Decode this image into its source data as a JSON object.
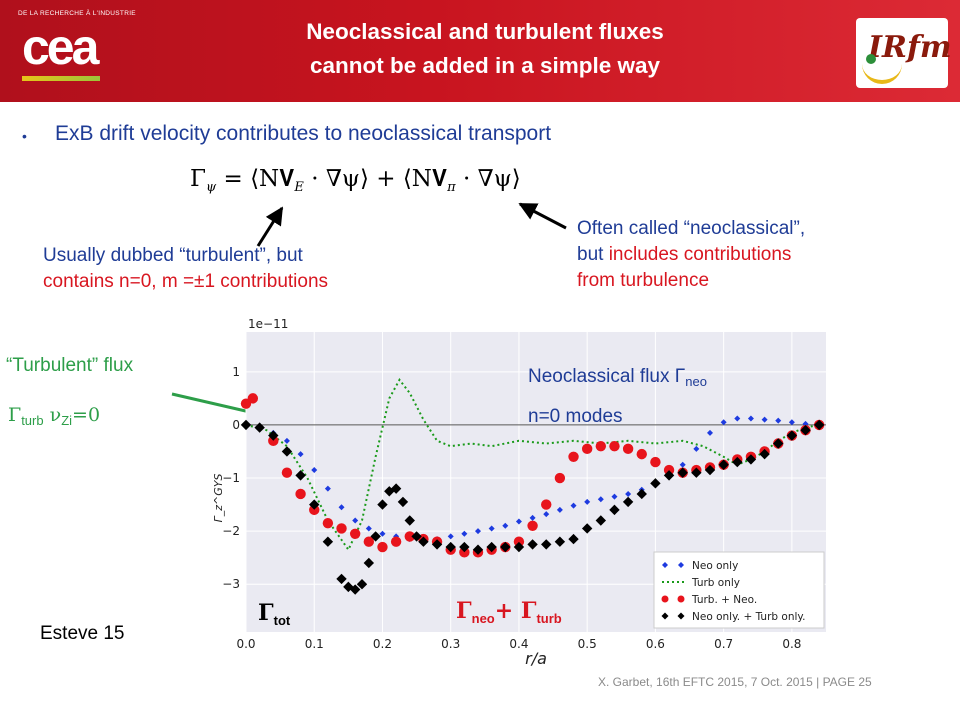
{
  "header": {
    "title_line1": "Neoclassical and turbulent fluxes",
    "title_line2": "cannot be added in a simple way",
    "logo_left_tagline": "DE LA RECHERCHE À L'INDUSTRIE",
    "logo_left_word": "cea",
    "logo_right_word": "IRfm"
  },
  "bullet": "ExB drift velocity contributes to neoclassical transport",
  "equation": {
    "lhs": "Γ",
    "lhs_sub": "ψ",
    "term1": " = ⟨N𝐕",
    "term1_sub": "E",
    "term1_rest": " · ∇ψ⟩ + ⟨N𝐕",
    "term2_sub": "π",
    "term2_rest": " · ∇ψ⟩"
  },
  "annotations": {
    "left_line1": "Usually dubbed “turbulent”, but",
    "left_line2": "contains n=0, m =±1 contributions",
    "right_line1": "Often called “neoclassical”,",
    "right_line2a": "but ",
    "right_line2b": "includes contributions",
    "right_line3": "from turbulence"
  },
  "labels": {
    "turb_flux": "“Turbulent” flux",
    "turb_sym": "Γ",
    "turb_sym_sub": "turb",
    "turb_nu": "ν",
    "turb_nu_sub": "Zi",
    "turb_nu_val": "=0",
    "neo_flux": "Neoclassical flux Γ",
    "neo_flux_sub": "neo",
    "n0_modes": "n=0 modes",
    "gtot": "Γ",
    "gtot_sub": "tot",
    "gsum_a": "Γ",
    "gsum_a_sub": "neo",
    "gsum_plus": "+ Γ",
    "gsum_b_sub": "turb"
  },
  "citation": "Esteve  15",
  "footer": "X. Garbet, 16th EFTC 2015, 7 Oct. 2015 | PAGE 25",
  "colors": {
    "header_red": "#c8141f",
    "navy": "#1f3c96",
    "red": "#d81620",
    "green": "#2d9e49",
    "neo_blue": "#1e3be0",
    "turb_green": "#1a9a1a"
  },
  "chart_data": {
    "type": "line",
    "xlabel": "r/a",
    "ylabel": "Γ_z^GYS",
    "offset_label": "1e−11",
    "xlim": [
      0.0,
      0.85
    ],
    "ylim": [
      -3.9,
      1.75
    ],
    "xticks": [
      "0.0",
      "0.1",
      "0.2",
      "0.3",
      "0.4",
      "0.5",
      "0.6",
      "0.7",
      "0.8"
    ],
    "yticks": [
      "−3",
      "−2",
      "−1",
      "0",
      "1"
    ],
    "grid": true,
    "legend_position": "lower-right",
    "legend": [
      "Neo only",
      "Turb only",
      "Turb. + Neo.",
      "Neo only. + Turb only."
    ],
    "series": [
      {
        "name": "Neo only",
        "style": "blue-small-diamond-markers",
        "x": [
          0.0,
          0.02,
          0.04,
          0.06,
          0.08,
          0.1,
          0.12,
          0.14,
          0.16,
          0.18,
          0.2,
          0.22,
          0.24,
          0.26,
          0.28,
          0.3,
          0.32,
          0.34,
          0.36,
          0.38,
          0.4,
          0.42,
          0.44,
          0.46,
          0.48,
          0.5,
          0.52,
          0.54,
          0.56,
          0.58,
          0.6,
          0.62,
          0.64,
          0.66,
          0.68,
          0.7,
          0.72,
          0.74,
          0.76,
          0.78,
          0.8,
          0.82,
          0.84
        ],
        "values": [
          0.0,
          -0.05,
          -0.15,
          -0.3,
          -0.55,
          -0.85,
          -1.2,
          -1.55,
          -1.8,
          -1.95,
          -2.05,
          -2.1,
          -2.15,
          -2.15,
          -2.15,
          -2.1,
          -2.05,
          -2.0,
          -1.95,
          -1.9,
          -1.82,
          -1.75,
          -1.68,
          -1.6,
          -1.52,
          -1.45,
          -1.4,
          -1.35,
          -1.3,
          -1.22,
          -1.1,
          -0.95,
          -0.75,
          -0.45,
          -0.15,
          0.05,
          0.12,
          0.12,
          0.1,
          0.08,
          0.05,
          0.02,
          0.0
        ]
      },
      {
        "name": "Turb only",
        "style": "green-dotted-line",
        "x": [
          0.0,
          0.03,
          0.06,
          0.09,
          0.12,
          0.15,
          0.17,
          0.19,
          0.21,
          0.225,
          0.24,
          0.26,
          0.28,
          0.3,
          0.33,
          0.36,
          0.4,
          0.44,
          0.48,
          0.52,
          0.56,
          0.6,
          0.64,
          0.67,
          0.7,
          0.72,
          0.74,
          0.76,
          0.78,
          0.8,
          0.82,
          0.84
        ],
        "values": [
          0.0,
          -0.1,
          -0.4,
          -1.0,
          -1.8,
          -2.35,
          -1.8,
          -0.6,
          0.5,
          0.85,
          0.6,
          0.1,
          -0.3,
          -0.4,
          -0.35,
          -0.4,
          -0.3,
          -0.35,
          -0.3,
          -0.35,
          -0.3,
          -0.35,
          -0.3,
          -0.4,
          -0.6,
          -0.75,
          -0.65,
          -0.5,
          -0.3,
          -0.15,
          -0.05,
          0.0
        ]
      },
      {
        "name": "Turb. + Neo.",
        "style": "red-large-circle-markers",
        "x": [
          0.0,
          0.01,
          0.02,
          0.04,
          0.06,
          0.08,
          0.1,
          0.12,
          0.14,
          0.16,
          0.18,
          0.2,
          0.22,
          0.24,
          0.26,
          0.28,
          0.3,
          0.32,
          0.34,
          0.36,
          0.38,
          0.4,
          0.42,
          0.44,
          0.46,
          0.48,
          0.5,
          0.52,
          0.54,
          0.56,
          0.58,
          0.6,
          0.62,
          0.64,
          0.66,
          0.68,
          0.7,
          0.72,
          0.74,
          0.76,
          0.78,
          0.8,
          0.82,
          0.84
        ],
        "values": [
          0.4,
          0.5,
          null,
          -0.3,
          -0.9,
          -1.3,
          -1.6,
          -1.85,
          -1.95,
          -2.05,
          -2.2,
          -2.3,
          -2.2,
          -2.1,
          -2.15,
          -2.2,
          -2.35,
          -2.4,
          -2.4,
          -2.35,
          -2.3,
          -2.2,
          -1.9,
          -1.5,
          -1.0,
          -0.6,
          -0.45,
          -0.4,
          -0.4,
          -0.45,
          -0.55,
          -0.7,
          -0.85,
          -0.9,
          -0.85,
          -0.8,
          -0.75,
          -0.65,
          -0.6,
          -0.5,
          -0.35,
          -0.2,
          -0.1,
          0.0
        ]
      },
      {
        "name": "Neo only. + Turb only.",
        "style": "black-diamond-markers",
        "x": [
          0.0,
          0.02,
          0.04,
          0.06,
          0.08,
          0.1,
          0.12,
          0.14,
          0.15,
          0.16,
          0.17,
          0.18,
          0.19,
          0.2,
          0.21,
          0.22,
          0.23,
          0.24,
          0.25,
          0.26,
          0.28,
          0.3,
          0.32,
          0.34,
          0.36,
          0.38,
          0.4,
          0.42,
          0.44,
          0.46,
          0.48,
          0.5,
          0.52,
          0.54,
          0.56,
          0.58,
          0.6,
          0.62,
          0.64,
          0.66,
          0.68,
          0.7,
          0.72,
          0.74,
          0.76,
          0.78,
          0.8,
          0.82,
          0.84
        ],
        "values": [
          0.0,
          -0.05,
          -0.2,
          -0.5,
          -0.95,
          -1.5,
          -2.2,
          -2.9,
          -3.05,
          -3.1,
          -3.0,
          -2.6,
          -2.1,
          -1.5,
          -1.25,
          -1.2,
          -1.45,
          -1.8,
          -2.1,
          -2.2,
          -2.25,
          -2.3,
          -2.3,
          -2.35,
          -2.3,
          -2.3,
          -2.3,
          -2.25,
          -2.25,
          -2.2,
          -2.15,
          -1.95,
          -1.8,
          -1.6,
          -1.45,
          -1.3,
          -1.1,
          -0.95,
          -0.9,
          -0.9,
          -0.85,
          -0.75,
          -0.7,
          -0.65,
          -0.55,
          -0.35,
          -0.2,
          -0.1,
          0.0
        ]
      }
    ]
  }
}
